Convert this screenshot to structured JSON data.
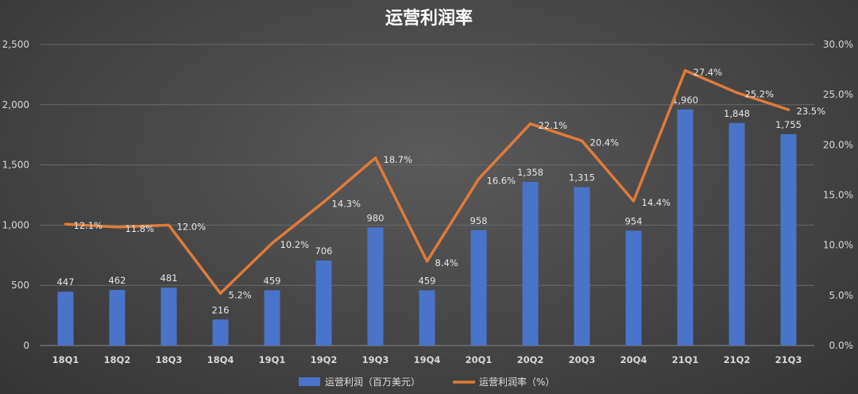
{
  "chart_data": {
    "type": "bar",
    "title": "运营利润率",
    "categories": [
      "18Q1",
      "18Q2",
      "18Q3",
      "18Q4",
      "19Q1",
      "19Q2",
      "19Q3",
      "19Q4",
      "20Q1",
      "20Q2",
      "20Q3",
      "20Q4",
      "21Q1",
      "21Q2",
      "21Q3"
    ],
    "series": [
      {
        "name": "运营利润（百万美元）",
        "type": "bar",
        "axis": "left",
        "color": "#4a74c9",
        "values": [
          447,
          462,
          481,
          216,
          459,
          706,
          980,
          459,
          958,
          1358,
          1315,
          954,
          1960,
          1848,
          1755
        ],
        "labels": [
          "447",
          "462",
          "481",
          "216",
          "459",
          "706",
          "980",
          "459",
          "958",
          "1,358",
          "1,315",
          "954",
          "1,960",
          "1,848",
          "1,755"
        ]
      },
      {
        "name": "运营利润率（%）",
        "type": "line",
        "axis": "right",
        "color": "#e07b39",
        "values": [
          12.1,
          11.8,
          12.0,
          5.2,
          10.2,
          14.3,
          18.7,
          8.4,
          16.6,
          22.1,
          20.4,
          14.4,
          27.4,
          25.2,
          23.5
        ],
        "labels": [
          "12.1%",
          "11.8%",
          "12.0%",
          "5.2%",
          "10.2%",
          "14.3%",
          "18.7%",
          "8.4%",
          "16.6%",
          "22.1%",
          "20.4%",
          "14.4%",
          "27.4%",
          "25.2%",
          "23.5%"
        ]
      }
    ],
    "y_left": {
      "min": 0,
      "max": 2500,
      "ticks": [
        "0",
        "500",
        "1,000",
        "1,500",
        "2,000",
        "2,500"
      ]
    },
    "y_right": {
      "min": 0,
      "max": 30,
      "ticks": [
        "0.0%",
        "5.0%",
        "10.0%",
        "15.0%",
        "20.0%",
        "25.0%",
        "30.0%"
      ]
    },
    "grid": true,
    "legend_position": "bottom"
  }
}
